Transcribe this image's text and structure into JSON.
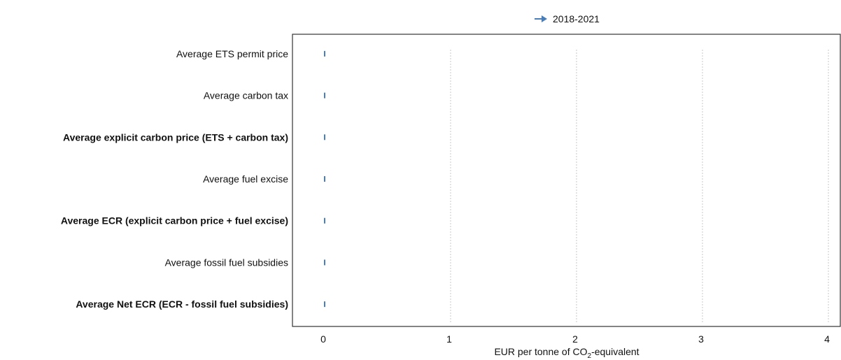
{
  "chart_data": {
    "type": "scatter",
    "orientation": "horizontal",
    "categories": [
      "Average ETS permit price",
      "Average carbon tax",
      "Average explicit carbon price (ETS + carbon tax)",
      "Average fuel excise",
      "Average ECR (explicit carbon price + fuel excise)",
      "Average fossil fuel subsidies",
      "Average Net ECR (ECR - fossil fuel subsidies)"
    ],
    "bold_categories": [
      "Average explicit carbon price (ETS + carbon tax)",
      "Average ECR (explicit carbon price + fuel excise)",
      "Average Net ECR (ECR - fossil fuel subsidies)"
    ],
    "series": [
      {
        "name": "2018-2021",
        "color": "#4a7ebb",
        "marker": "arrow",
        "start": [
          0,
          0,
          0,
          0,
          0,
          0,
          0
        ],
        "end": [
          0,
          0,
          0,
          0,
          0,
          0,
          0
        ]
      }
    ],
    "xlabel_prefix": "EUR per tonne of CO",
    "xlabel_sub": "2",
    "xlabel_suffix": "-equivalent",
    "xlim": [
      0,
      4
    ],
    "xticks": [
      "0",
      "1",
      "2",
      "3",
      "4"
    ],
    "grid": "vertical dashed",
    "legend_position": "top-center"
  }
}
